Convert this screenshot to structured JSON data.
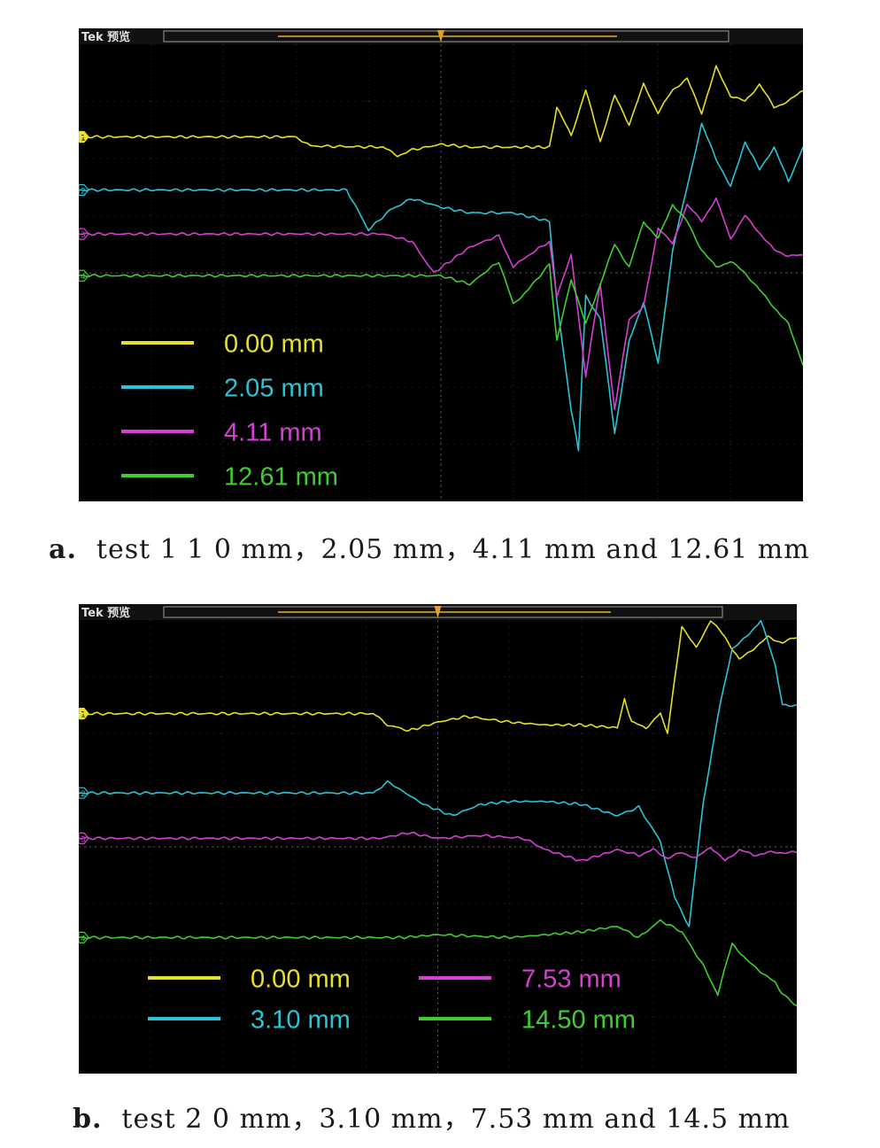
{
  "chart_data": [
    {
      "type": "line",
      "panel": "a",
      "scope_label": "Tek 预览",
      "caption_letter": "a.",
      "caption_text": "test 1 1 0 mm，2.05 mm，4.11 mm and 12.61 mm",
      "xlim": [
        0,
        10
      ],
      "ylim": [
        -4,
        4
      ],
      "grid": true,
      "legend_position": "bottom-left",
      "channels": [
        "1",
        "2",
        "3",
        "4"
      ],
      "series": [
        {
          "name": "0.00 mm",
          "color": "#e8e024",
          "x": [
            0,
            3.0,
            3.2,
            4.2,
            4.4,
            4.6,
            5.0,
            5.4,
            6.0,
            6.5,
            6.6,
            6.8,
            7.0,
            7.2,
            7.4,
            7.6,
            7.8,
            8.0,
            8.2,
            8.4,
            8.6,
            8.8,
            9.0,
            9.2,
            9.4,
            9.6,
            9.8,
            10.0
          ],
          "y": [
            2.38,
            2.38,
            2.22,
            2.2,
            2.05,
            2.15,
            2.25,
            2.2,
            2.2,
            2.2,
            2.9,
            2.4,
            3.2,
            2.3,
            3.1,
            2.6,
            3.3,
            2.8,
            3.2,
            3.4,
            2.8,
            3.6,
            3.1,
            3.0,
            3.3,
            2.9,
            3.0,
            3.2
          ]
        },
        {
          "name": "2.05 mm",
          "color": "#29c4d6",
          "x": [
            0,
            3.7,
            4.0,
            4.3,
            4.6,
            5.0,
            5.4,
            6.0,
            6.5,
            6.6,
            6.8,
            6.9,
            7.0,
            7.2,
            7.4,
            7.6,
            7.8,
            8.0,
            8.2,
            8.4,
            8.6,
            8.8,
            9.0,
            9.2,
            9.4,
            9.6,
            9.8,
            10.0
          ],
          "y": [
            1.45,
            1.45,
            0.75,
            1.1,
            1.3,
            1.15,
            1.05,
            1.05,
            0.9,
            -0.5,
            -2.4,
            -3.1,
            -0.4,
            -0.8,
            -2.8,
            -1.2,
            -0.5,
            -1.6,
            0.4,
            1.5,
            2.6,
            2.0,
            1.5,
            2.3,
            1.8,
            2.2,
            1.6,
            2.2
          ]
        },
        {
          "name": "4.11 mm",
          "color": "#d63ed4",
          "x": [
            0,
            4.2,
            4.6,
            4.9,
            5.4,
            5.8,
            6.0,
            6.2,
            6.5,
            6.6,
            6.8,
            7.0,
            7.2,
            7.4,
            7.6,
            7.8,
            8.0,
            8.2,
            8.4,
            8.6,
            8.8,
            9.0,
            9.2,
            9.4,
            9.6,
            9.8,
            10.0
          ],
          "y": [
            0.68,
            0.68,
            0.55,
            0.0,
            0.45,
            0.65,
            0.1,
            0.3,
            0.55,
            -0.4,
            0.3,
            -1.8,
            -0.2,
            -2.4,
            -0.8,
            -0.6,
            0.8,
            0.5,
            1.2,
            0.9,
            1.3,
            0.6,
            1.0,
            0.7,
            0.4,
            0.3,
            0.3
          ]
        },
        {
          "name": "12.61 mm",
          "color": "#3ecf2e",
          "x": [
            0,
            5.0,
            5.4,
            5.8,
            6.0,
            6.2,
            6.5,
            6.6,
            6.8,
            7.0,
            7.2,
            7.4,
            7.6,
            7.8,
            8.0,
            8.2,
            8.4,
            8.6,
            8.8,
            9.0,
            9.2,
            9.4,
            9.6,
            9.8,
            10.0
          ],
          "y": [
            -0.05,
            -0.05,
            -0.2,
            0.2,
            -0.55,
            -0.3,
            0.15,
            -1.2,
            -0.1,
            -0.9,
            -0.2,
            0.5,
            0.1,
            0.9,
            0.6,
            1.2,
            0.9,
            0.4,
            0.1,
            0.2,
            0.0,
            -0.3,
            -0.6,
            -0.9,
            -1.6
          ]
        }
      ]
    },
    {
      "type": "line",
      "panel": "b",
      "scope_label": "Tek 预览",
      "caption_letter": "b.",
      "caption_text": "test 2 0 mm，3.10 mm，7.53 mm and 14.5 mm",
      "xlim": [
        0,
        10
      ],
      "ylim": [
        -4,
        4
      ],
      "grid": true,
      "legend_position": "bottom-center",
      "channels": [
        "1",
        "2",
        "3",
        "4"
      ],
      "series": [
        {
          "name": "0.00 mm",
          "color": "#e8e024",
          "x": [
            0,
            4.1,
            4.3,
            4.6,
            5.0,
            5.4,
            6.0,
            6.5,
            7.0,
            7.5,
            7.6,
            7.7,
            7.9,
            8.1,
            8.2,
            8.4,
            8.6,
            8.8,
            9.0,
            9.2,
            9.4,
            9.6,
            9.8,
            10.0
          ],
          "y": [
            2.35,
            2.35,
            2.15,
            2.05,
            2.2,
            2.3,
            2.2,
            2.15,
            2.15,
            2.1,
            2.6,
            2.2,
            2.1,
            2.35,
            2.0,
            3.9,
            3.5,
            4.0,
            3.7,
            3.3,
            3.5,
            3.7,
            3.6,
            3.7
          ]
        },
        {
          "name": "3.10 mm",
          "color": "#29c4d6",
          "x": [
            0,
            4.1,
            4.3,
            4.8,
            5.2,
            5.6,
            6.0,
            6.5,
            7.0,
            7.5,
            7.8,
            8.1,
            8.3,
            8.5,
            8.7,
            8.9,
            9.1,
            9.3,
            9.5,
            9.7,
            9.8,
            10.0
          ],
          "y": [
            0.95,
            0.95,
            1.15,
            0.75,
            0.55,
            0.75,
            0.8,
            0.8,
            0.75,
            0.55,
            0.7,
            0.1,
            -0.9,
            -1.4,
            0.8,
            2.3,
            3.5,
            3.7,
            4.0,
            3.2,
            2.5,
            2.5
          ]
        },
        {
          "name": "7.53 mm",
          "color": "#d63ed4",
          "x": [
            0,
            4.2,
            4.6,
            5.0,
            5.6,
            6.2,
            6.5,
            7.0,
            7.5,
            7.8,
            8.0,
            8.2,
            8.4,
            8.6,
            8.8,
            9.0,
            9.2,
            9.4,
            9.6,
            9.8,
            10.0
          ],
          "y": [
            0.15,
            0.15,
            0.25,
            0.15,
            0.2,
            0.15,
            -0.05,
            -0.25,
            -0.05,
            -0.15,
            -0.05,
            -0.2,
            -0.1,
            -0.2,
            0.0,
            -0.25,
            -0.05,
            -0.15,
            -0.1,
            -0.1,
            -0.1
          ]
        },
        {
          "name": "14.50 mm",
          "color": "#3ecf2e",
          "x": [
            0,
            4.5,
            5.0,
            6.0,
            6.5,
            7.0,
            7.5,
            7.8,
            8.1,
            8.4,
            8.7,
            8.9,
            9.1,
            9.3,
            9.5,
            9.7,
            9.8,
            10.0
          ],
          "y": [
            -1.6,
            -1.6,
            -1.55,
            -1.6,
            -1.55,
            -1.5,
            -1.4,
            -1.6,
            -1.3,
            -1.5,
            -2.1,
            -2.6,
            -1.7,
            -2.0,
            -2.2,
            -2.4,
            -2.6,
            -2.8
          ]
        }
      ]
    }
  ]
}
